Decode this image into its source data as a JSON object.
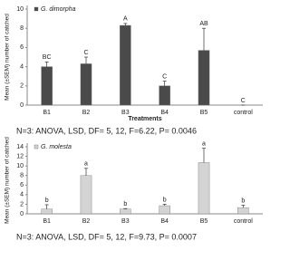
{
  "chart_data": [
    {
      "type": "bar",
      "y_label": "Mean (±SEM) number of catched",
      "x_label": "Treatments",
      "legend": "G. dimorpha",
      "color": "#4a4a4a",
      "categories": [
        "B1",
        "B2",
        "B3",
        "B4",
        "B5",
        "control"
      ],
      "values": [
        4.0,
        4.3,
        8.3,
        2.0,
        5.7,
        0
      ],
      "errors": [
        0.5,
        0.7,
        0.2,
        0.5,
        2.3,
        0
      ],
      "letters": [
        "BC",
        "C",
        "A",
        "C",
        "AB",
        "C"
      ],
      "ylim": [
        0,
        10
      ],
      "yticks": [
        0,
        2,
        4,
        6,
        8,
        10
      ],
      "caption": "N=3: ANOVA, LSD, DF= 5, 12, F=6.22, P= 0.0046"
    },
    {
      "type": "bar",
      "y_label": "Mean (±SEM) number of catched",
      "legend": "G. molesta",
      "color": "#d4d4d4",
      "categories": [
        "B1",
        "B2",
        "B3",
        "B4",
        "B5",
        "control"
      ],
      "values": [
        1.0,
        8.0,
        1.0,
        1.7,
        10.7,
        1.3
      ],
      "errors": [
        0.9,
        1.5,
        0.1,
        0.3,
        3.0,
        0.5
      ],
      "letters": [
        "b",
        "a",
        "b",
        "b",
        "a",
        "b"
      ],
      "ylim": [
        0,
        14
      ],
      "yticks": [
        0,
        2,
        4,
        6,
        8,
        10,
        12,
        14
      ],
      "caption": "N=3: ANOVA, LSD, DF= 5, 12, F=9.73, P= 0.0007"
    }
  ]
}
